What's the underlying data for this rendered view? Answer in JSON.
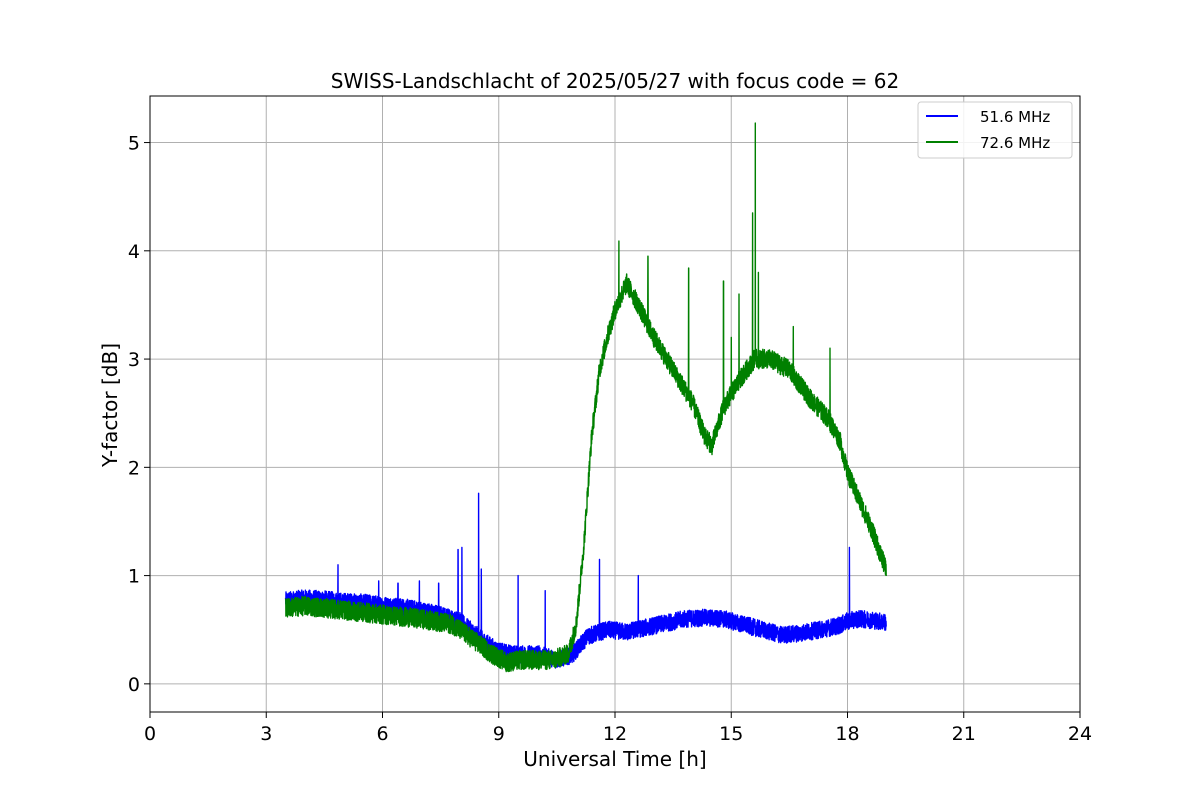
{
  "chart_data": {
    "type": "line",
    "title": "SWISS-Landschlacht of 2025/05/27 with focus code = 62",
    "xlabel": "Universal Time [h]",
    "ylabel": "Y-factor [dB]",
    "xlim": [
      0,
      24
    ],
    "ylim": [
      -0.26,
      5.43
    ],
    "xticks": [
      0,
      3,
      6,
      9,
      12,
      15,
      18,
      21,
      24
    ],
    "xtick_labels": [
      "0",
      "3",
      "6",
      "9",
      "12",
      "15",
      "18",
      "21",
      "24"
    ],
    "yticks": [
      0,
      1,
      2,
      3,
      4,
      5
    ],
    "ytick_labels": [
      "0",
      "1",
      "2",
      "3",
      "4",
      "5"
    ],
    "grid": true,
    "legend_position": "top-right",
    "series": [
      {
        "name": "51.6 MHz",
        "color": "#0000ff",
        "noise": 0.08,
        "x": [
          3.5,
          4.0,
          4.5,
          5.0,
          5.5,
          6.0,
          6.5,
          7.0,
          7.5,
          8.0,
          8.3,
          8.6,
          9.0,
          9.5,
          10.0,
          10.5,
          10.9,
          11.3,
          11.8,
          12.3,
          12.8,
          13.3,
          13.8,
          14.3,
          14.8,
          15.3,
          15.8,
          16.3,
          16.8,
          17.3,
          17.8,
          18.0,
          18.3,
          18.6,
          19.0
        ],
        "values": [
          0.77,
          0.79,
          0.78,
          0.76,
          0.75,
          0.73,
          0.71,
          0.68,
          0.64,
          0.58,
          0.49,
          0.4,
          0.3,
          0.27,
          0.28,
          0.22,
          0.27,
          0.44,
          0.5,
          0.48,
          0.52,
          0.56,
          0.6,
          0.61,
          0.6,
          0.55,
          0.5,
          0.45,
          0.47,
          0.5,
          0.54,
          0.58,
          0.6,
          0.59,
          0.57
        ],
        "spikes": [
          [
            4.85,
            1.1
          ],
          [
            5.9,
            0.95
          ],
          [
            6.4,
            0.93
          ],
          [
            6.95,
            0.95
          ],
          [
            7.45,
            0.93
          ],
          [
            7.95,
            1.24
          ],
          [
            8.05,
            1.26
          ],
          [
            8.48,
            1.76
          ],
          [
            8.55,
            1.06
          ],
          [
            9.5,
            1.0
          ],
          [
            10.2,
            0.86
          ],
          [
            11.6,
            1.15
          ],
          [
            12.6,
            1.0
          ],
          [
            18.05,
            1.26
          ]
        ]
      },
      {
        "name": "72.6 MHz",
        "color": "#008000",
        "noise": 0.09,
        "x": [
          3.5,
          4.0,
          5.0,
          6.0,
          7.0,
          7.8,
          8.3,
          8.8,
          9.2,
          9.6,
          10.0,
          10.4,
          10.8,
          11.0,
          11.2,
          11.4,
          11.6,
          11.8,
          12.0,
          12.3,
          12.6,
          13.0,
          13.5,
          14.0,
          14.3,
          14.5,
          14.8,
          15.2,
          15.6,
          16.0,
          16.5,
          17.0,
          17.5,
          17.8,
          18.0,
          18.3,
          18.6,
          19.0
        ],
        "values": [
          0.7,
          0.72,
          0.68,
          0.64,
          0.6,
          0.55,
          0.42,
          0.28,
          0.2,
          0.22,
          0.22,
          0.22,
          0.28,
          0.55,
          1.3,
          2.3,
          2.9,
          3.2,
          3.45,
          3.7,
          3.5,
          3.2,
          2.9,
          2.6,
          2.3,
          2.2,
          2.55,
          2.8,
          3.0,
          3.0,
          2.9,
          2.65,
          2.45,
          2.25,
          1.95,
          1.7,
          1.45,
          1.05
        ],
        "spikes": [
          [
            12.1,
            4.09
          ],
          [
            12.85,
            3.95
          ],
          [
            13.9,
            3.84
          ],
          [
            14.8,
            3.72
          ],
          [
            15.0,
            3.2
          ],
          [
            15.2,
            3.6
          ],
          [
            15.55,
            4.35
          ],
          [
            15.62,
            5.18
          ],
          [
            15.7,
            3.8
          ],
          [
            16.6,
            3.3
          ],
          [
            17.55,
            3.1
          ]
        ]
      }
    ]
  }
}
